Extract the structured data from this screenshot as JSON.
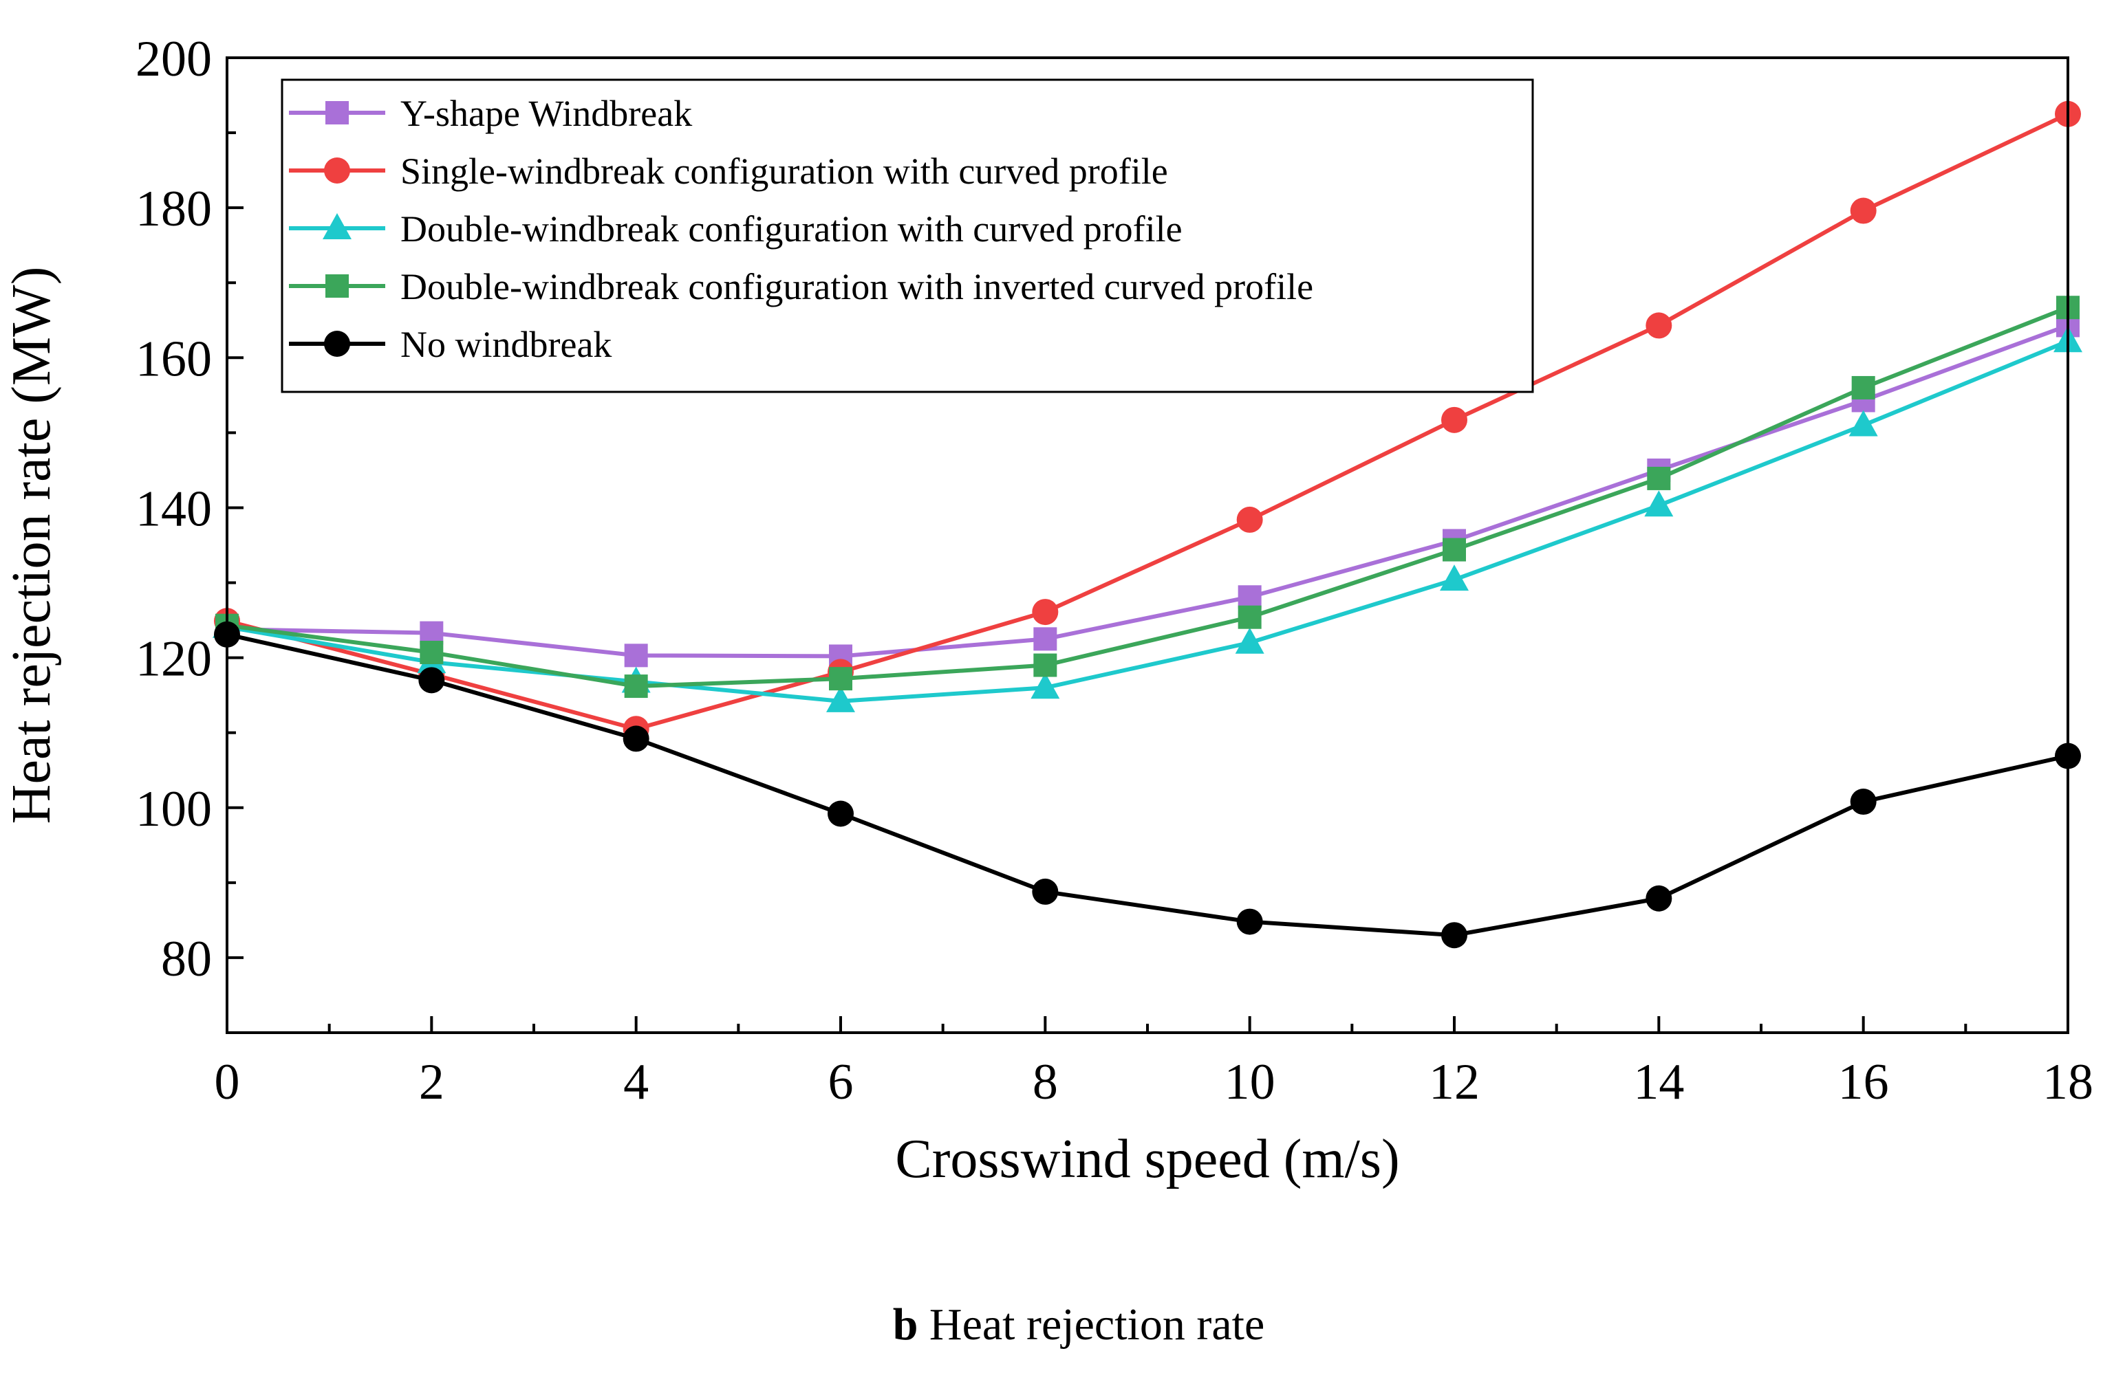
{
  "chart_data": {
    "type": "line",
    "xlabel": "Crosswind speed (m/s)",
    "ylabel": "Heat rejection rate (MW)",
    "xlim": [
      0,
      18
    ],
    "ylim": [
      70,
      200
    ],
    "xticks": [
      0,
      2,
      4,
      6,
      8,
      10,
      12,
      14,
      16,
      18
    ],
    "yticks": [
      80,
      100,
      120,
      140,
      160,
      180,
      200
    ],
    "grid": false,
    "legend_position": "top-left",
    "x": [
      0,
      2,
      4,
      6,
      8,
      10,
      12,
      14,
      16,
      18
    ],
    "series": [
      {
        "name": "Y-shape Windbreak",
        "marker": "square",
        "color": "#a970d8",
        "values": [
          123.8,
          123.3,
          120.3,
          120.2,
          122.5,
          128.1,
          135.6,
          145.0,
          154.3,
          164.3
        ]
      },
      {
        "name": "Single-windbreak configuration with curved profile",
        "marker": "circle",
        "color": "#ef4040",
        "values": [
          124.9,
          117.8,
          110.5,
          118.1,
          126.1,
          138.4,
          151.7,
          164.3,
          179.6,
          192.5
        ]
      },
      {
        "name": "Double-windbreak configuration with curved profile",
        "marker": "triangle",
        "color": "#1ec9cc",
        "values": [
          124.1,
          119.4,
          116.8,
          114.2,
          116.0,
          122.0,
          130.4,
          140.3,
          151.0,
          162.2
        ]
      },
      {
        "name": "Double-windbreak configuration with inverted curved profile",
        "marker": "square",
        "color": "#3ba65a",
        "values": [
          124.3,
          120.7,
          116.2,
          117.2,
          119.0,
          125.4,
          134.4,
          143.9,
          156.0,
          166.7
        ]
      },
      {
        "name": "No windbreak",
        "marker": "circle",
        "color": "#000000",
        "values": [
          123.1,
          117.0,
          109.2,
          99.2,
          88.8,
          84.8,
          83.0,
          87.9,
          100.8,
          106.9
        ]
      }
    ]
  },
  "caption": {
    "label": "b",
    "text": " Heat rejection rate"
  }
}
